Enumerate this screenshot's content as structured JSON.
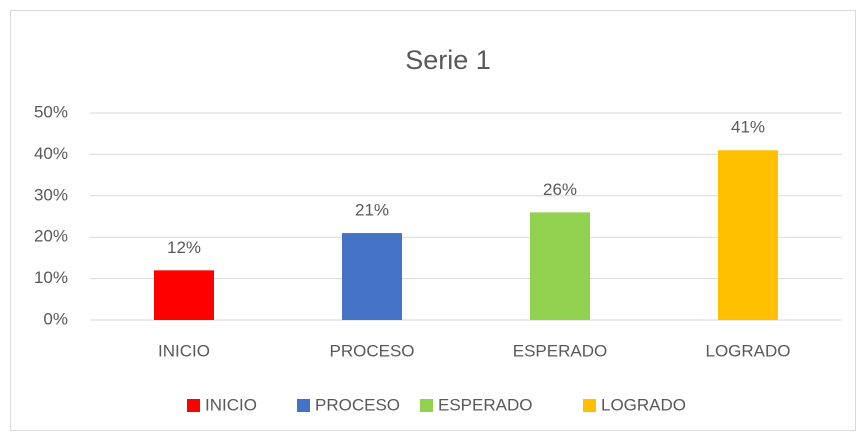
{
  "chart_data": {
    "type": "bar",
    "title": "Serie 1",
    "categories": [
      "INICIO",
      "PROCESO",
      "ESPERADO",
      "LOGRADO"
    ],
    "values": [
      12,
      21,
      26,
      41
    ],
    "value_labels": [
      "12%",
      "21%",
      "26%",
      "41%"
    ],
    "colors": [
      "#ff0000",
      "#4472c4",
      "#92d050",
      "#ffc000"
    ],
    "ylim": [
      0,
      50
    ],
    "yticks": [
      {
        "value": 0,
        "label": "0%"
      },
      {
        "value": 10,
        "label": "10%"
      },
      {
        "value": 20,
        "label": "20%"
      },
      {
        "value": 30,
        "label": "30%"
      },
      {
        "value": 40,
        "label": "40%"
      },
      {
        "value": 50,
        "label": "50%"
      }
    ],
    "grid": true,
    "legend": "bottom"
  }
}
